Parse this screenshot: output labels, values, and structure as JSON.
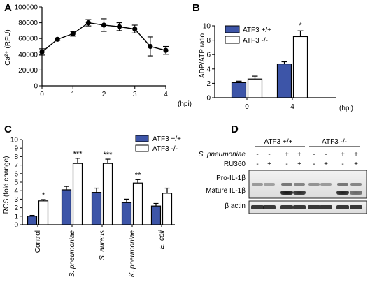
{
  "panel_labels": [
    "A",
    "B",
    "C",
    "D"
  ],
  "colors": {
    "blue": "#3d55a8",
    "white": "#ffffff",
    "black": "#000000"
  },
  "chart_data": [
    {
      "panel": "A",
      "type": "line",
      "ylabel": "Ca²⁺ (RFU)",
      "xlabel": "(hpi)",
      "xlim": [
        0,
        4
      ],
      "ylim": [
        0,
        100000
      ],
      "x_ticks": [
        "0",
        "1",
        "2",
        "3",
        "4"
      ],
      "y_ticks": [
        "0",
        "20000",
        "40000",
        "60000",
        "80000",
        "100000"
      ],
      "series": [
        {
          "x": [
            0,
            0.5,
            1,
            1.5,
            2,
            2.5,
            3,
            3.5,
            4
          ],
          "y": [
            43000,
            59000,
            66000,
            80000,
            77000,
            75000,
            72000,
            50000,
            45000
          ],
          "err": [
            4000,
            1500,
            3000,
            4000,
            8000,
            5000,
            5000,
            12000,
            5000
          ]
        }
      ]
    },
    {
      "panel": "B",
      "type": "bar",
      "ylabel": "ADP/ATP ratio",
      "xlabel": "(hpi)",
      "categories": [
        "0",
        "4"
      ],
      "ylim": [
        0,
        10
      ],
      "y_ticks": [
        "0",
        "2",
        "4",
        "6",
        "8",
        "10"
      ],
      "series": [
        {
          "name": "ATF3 +/+",
          "values": [
            2.1,
            4.7
          ],
          "err": [
            0.2,
            0.3
          ]
        },
        {
          "name": "ATF3 -/-",
          "values": [
            2.6,
            8.5
          ],
          "err": [
            0.4,
            0.8
          ]
        }
      ],
      "significance": [
        "",
        "*"
      ],
      "legend_position": "top-left"
    },
    {
      "panel": "C",
      "type": "bar",
      "ylabel": "ROS (fold change)",
      "categories": [
        "Control",
        "S. pneumoniae",
        "S. aureus",
        "K. pneumoniae",
        "E. coli"
      ],
      "ylim": [
        0,
        10
      ],
      "y_ticks": [
        "0",
        "1",
        "2",
        "3",
        "4",
        "5",
        "6",
        "7",
        "8",
        "9",
        "10"
      ],
      "series": [
        {
          "name": "ATF3 +/+",
          "values": [
            1.0,
            4.1,
            3.8,
            2.6,
            2.2
          ],
          "err": [
            0.1,
            0.4,
            0.5,
            0.4,
            0.3
          ]
        },
        {
          "name": "ATF3 -/-",
          "values": [
            2.8,
            7.2,
            7.2,
            4.9,
            3.7
          ],
          "err": [
            0.15,
            0.6,
            0.5,
            0.4,
            0.6
          ]
        }
      ],
      "significance": [
        "*",
        "***",
        "***",
        "**",
        ""
      ],
      "legend_position": "top-right"
    }
  ],
  "blot": {
    "groups": [
      "ATF3 +/+",
      "ATF3 -/-"
    ],
    "conditions": [
      {
        "label": "S. pneumoniae",
        "marks": [
          "-",
          "-",
          "+",
          "+",
          "-",
          "-",
          "+",
          "+"
        ]
      },
      {
        "label": "RU360",
        "marks": [
          "-",
          "+",
          "-",
          "+",
          "-",
          "+",
          "-",
          "+"
        ]
      }
    ],
    "bands": [
      "Pro-IL-1β",
      "Mature IL-1β",
      "β actin"
    ]
  }
}
